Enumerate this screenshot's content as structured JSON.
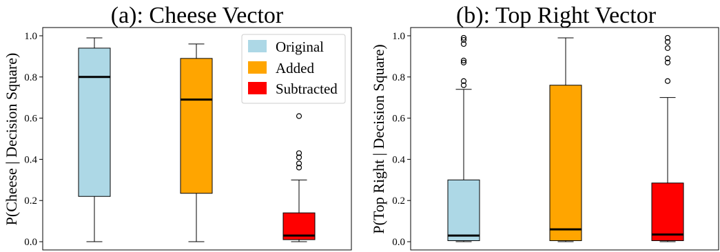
{
  "chart_data": [
    {
      "type": "box",
      "title": "(a): Cheese Vector",
      "ylabel": "P(Cheese | Decision Square)",
      "xlabel": "",
      "ylim": [
        -0.04,
        1.04
      ],
      "yticks": [
        "0.0",
        "0.2",
        "0.4",
        "0.6",
        "0.8",
        "1.0"
      ],
      "legend": {
        "position": "top-right",
        "entries": [
          "Original",
          "Added",
          "Subtracted"
        ]
      },
      "series": [
        {
          "name": "Original",
          "color": "#add8e6",
          "whisker_low": 0.0,
          "q1": 0.22,
          "median": 0.8,
          "q3": 0.94,
          "whisker_high": 0.99,
          "outliers": []
        },
        {
          "name": "Added",
          "color": "#ffa500",
          "whisker_low": 0.0,
          "q1": 0.235,
          "median": 0.69,
          "q3": 0.89,
          "whisker_high": 0.96,
          "outliers": []
        },
        {
          "name": "Subtracted",
          "color": "#ff0000",
          "whisker_low": 0.0,
          "q1": 0.01,
          "median": 0.03,
          "q3": 0.14,
          "whisker_high": 0.3,
          "outliers": [
            0.36,
            0.38,
            0.41,
            0.43,
            0.61
          ]
        }
      ]
    },
    {
      "type": "box",
      "title": "(b): Top Right Vector",
      "ylabel": "P(Top Right | Decision Square)",
      "xlabel": "",
      "ylim": [
        -0.04,
        1.04
      ],
      "yticks": [
        "0.0",
        "0.2",
        "0.4",
        "0.6",
        "0.8",
        "1.0"
      ],
      "series": [
        {
          "name": "Original",
          "color": "#add8e6",
          "whisker_low": 0.0,
          "q1": 0.005,
          "median": 0.03,
          "q3": 0.3,
          "whisker_high": 0.74,
          "outliers": [
            0.76,
            0.78,
            0.87,
            0.88,
            0.96,
            0.98,
            0.99
          ]
        },
        {
          "name": "Added",
          "color": "#ffa500",
          "whisker_low": 0.0,
          "q1": 0.005,
          "median": 0.06,
          "q3": 0.76,
          "whisker_high": 0.99,
          "outliers": []
        },
        {
          "name": "Subtracted",
          "color": "#ff0000",
          "whisker_low": 0.0,
          "q1": 0.005,
          "median": 0.035,
          "q3": 0.285,
          "whisker_high": 0.7,
          "outliers": [
            0.78,
            0.87,
            0.89,
            0.94,
            0.97,
            0.99
          ]
        }
      ]
    }
  ]
}
